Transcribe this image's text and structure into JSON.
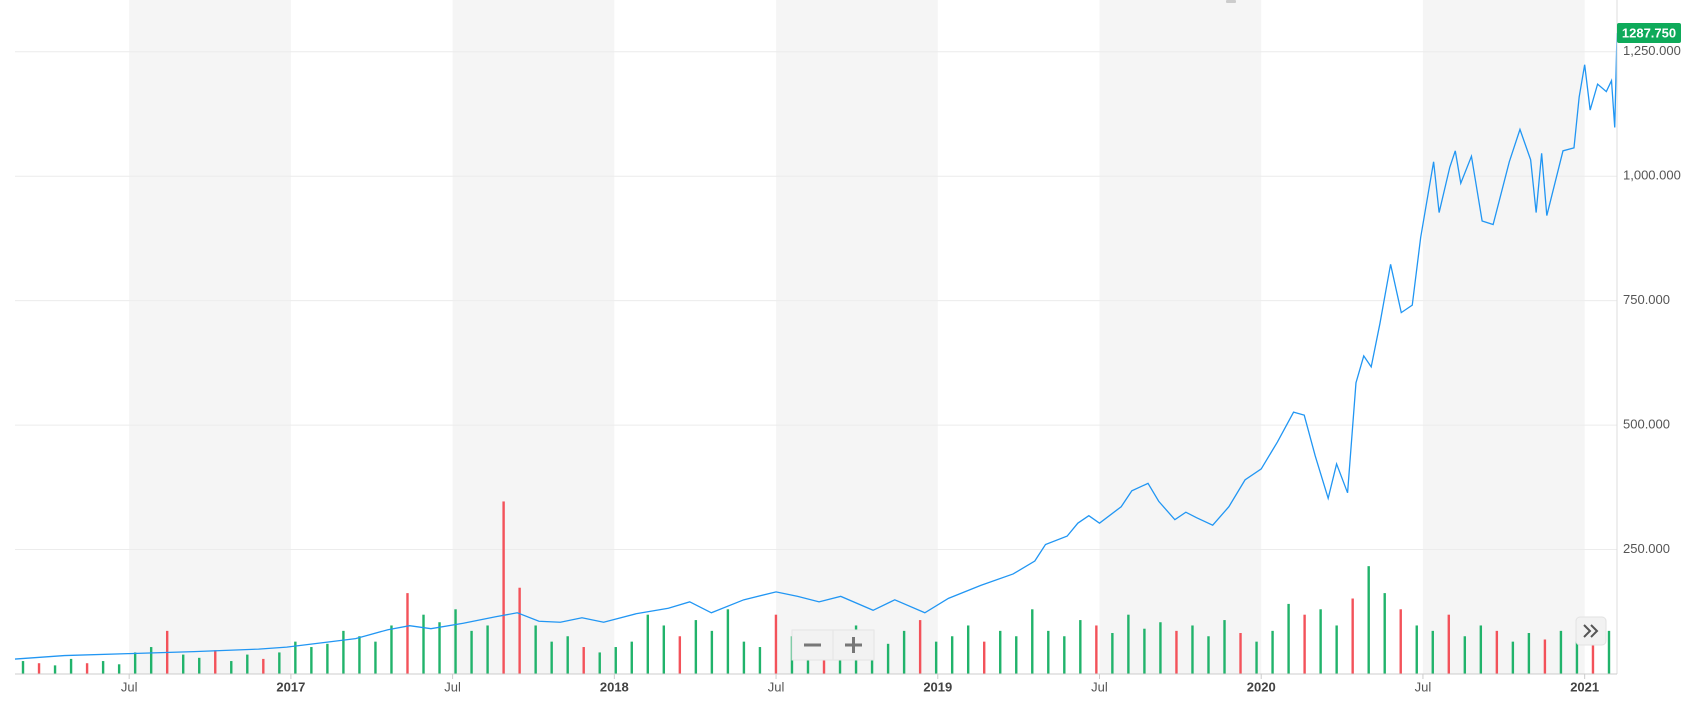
{
  "chart_data": {
    "type": "line",
    "x": [
      2016.147,
      2016.3,
      2016.5,
      2016.7,
      2016.9,
      2016.987,
      2017.1,
      2017.2,
      2017.3,
      2017.367,
      2017.433,
      2017.533,
      2017.633,
      2017.7,
      2017.767,
      2017.833,
      2017.9,
      2017.967,
      2018.067,
      2018.167,
      2018.233,
      2018.3,
      2018.4,
      2018.5,
      2018.567,
      2018.633,
      2018.7,
      2018.8,
      2018.867,
      2018.96,
      2019.033,
      2019.133,
      2019.233,
      2019.3,
      2019.333,
      2019.4,
      2019.433,
      2019.467,
      2019.5,
      2019.567,
      2019.6,
      2019.65,
      2019.683,
      2019.733,
      2019.767,
      2019.8,
      2019.85,
      2019.9,
      2019.95,
      2020.0,
      2020.05,
      2020.1,
      2020.133,
      2020.167,
      2020.207,
      2020.233,
      2020.267,
      2020.293,
      2020.317,
      2020.34,
      2020.367,
      2020.4,
      2020.433,
      2020.467,
      2020.493,
      2020.533,
      2020.55,
      2020.583,
      2020.6,
      2020.617,
      2020.65,
      2020.683,
      2020.717,
      2020.767,
      2020.8,
      2020.833,
      2020.85,
      2020.867,
      2020.883,
      2020.933,
      2020.967,
      2020.983,
      2021.0,
      2021.017,
      2021.04,
      2021.067,
      2021.083,
      2021.093,
      2021.1
    ],
    "series": [
      {
        "color": "#2196f3",
        "values": [
          30,
          37,
          41,
          45,
          50,
          54,
          63,
          71,
          89,
          97,
          91,
          102,
          115,
          123,
          106,
          104,
          113,
          104,
          121,
          132,
          145,
          123,
          149,
          165,
          156,
          145,
          156,
          128,
          149,
          123,
          152,
          178,
          201,
          227,
          260,
          277,
          303,
          318,
          303,
          336,
          368,
          383,
          347,
          310,
          325,
          314,
          299,
          336,
          390,
          412,
          466,
          526,
          520,
          438,
          353,
          422,
          364,
          585,
          639,
          617,
          704,
          823,
          726,
          741,
          877,
          1029,
          927,
          1018,
          1051,
          986,
          1040,
          910,
          903,
          1029,
          1094,
          1033,
          927,
          1046,
          921,
          1051,
          1057,
          1159,
          1224,
          1133,
          1185,
          1170,
          1192,
          1098,
          1287.75
        ]
      }
    ],
    "annotations": [
      {
        "value": 1287.75,
        "label": "1287.750",
        "color": "#0eaa5a"
      }
    ],
    "volume": {
      "axis": "y2",
      "values": [
        12,
        10,
        8,
        14,
        10,
        12,
        9,
        20,
        25,
        40,
        18,
        15,
        22,
        12,
        18,
        14,
        20,
        30,
        25,
        28,
        40,
        35,
        30,
        45,
        75,
        55,
        48,
        60,
        40,
        45,
        160,
        80,
        45,
        30,
        35,
        25,
        20,
        25,
        30,
        55,
        45,
        35,
        50,
        40,
        60,
        30,
        25,
        55,
        35,
        30,
        40,
        30,
        45,
        35,
        28,
        40,
        50,
        30,
        35,
        45,
        30,
        40,
        35,
        60,
        40,
        35,
        50,
        45,
        38,
        55,
        42,
        48,
        40,
        45,
        35,
        50,
        38,
        30,
        40,
        65,
        55,
        60,
        45,
        70,
        100,
        75,
        60,
        45,
        40,
        55,
        35,
        45,
        40,
        30,
        38,
        32,
        40,
        35,
        30,
        40
      ],
      "colors": [
        "#21b36b",
        "#f3525a",
        "#21b36b",
        "#21b36b",
        "#f3525a",
        "#21b36b",
        "#21b36b",
        "#21b36b",
        "#21b36b",
        "#f3525a",
        "#21b36b",
        "#21b36b",
        "#f3525a",
        "#21b36b",
        "#21b36b",
        "#f3525a",
        "#21b36b",
        "#21b36b",
        "#21b36b",
        "#21b36b",
        "#21b36b",
        "#21b36b",
        "#21b36b",
        "#21b36b",
        "#f3525a",
        "#21b36b",
        "#21b36b",
        "#21b36b",
        "#21b36b",
        "#21b36b",
        "#f3525a",
        "#f3525a",
        "#21b36b",
        "#21b36b",
        "#21b36b",
        "#f3525a",
        "#21b36b",
        "#21b36b",
        "#21b36b",
        "#21b36b",
        "#21b36b",
        "#f3525a",
        "#21b36b",
        "#21b36b",
        "#21b36b",
        "#21b36b",
        "#21b36b",
        "#f3525a",
        "#21b36b",
        "#21b36b",
        "#f3525a",
        "#21b36b",
        "#21b36b",
        "#21b36b",
        "#21b36b",
        "#21b36b",
        "#f3525a",
        "#21b36b",
        "#21b36b",
        "#21b36b",
        "#f3525a",
        "#21b36b",
        "#21b36b",
        "#21b36b",
        "#21b36b",
        "#21b36b",
        "#21b36b",
        "#f3525a",
        "#21b36b",
        "#21b36b",
        "#21b36b",
        "#21b36b",
        "#f3525a",
        "#21b36b",
        "#21b36b",
        "#21b36b",
        "#f3525a",
        "#21b36b",
        "#21b36b",
        "#21b36b",
        "#f3525a",
        "#21b36b",
        "#21b36b",
        "#f3525a",
        "#21b36b",
        "#21b36b",
        "#f3525a",
        "#21b36b",
        "#21b36b",
        "#f3525a",
        "#21b36b",
        "#21b36b",
        "#f3525a",
        "#21b36b",
        "#21b36b",
        "#f3525a",
        "#21b36b",
        "#21b36b",
        "#f3525a",
        "#21b36b"
      ]
    },
    "xlim": [
      2016.147,
      2021.1
    ],
    "xticks": [
      {
        "value": 2016.5,
        "label": "Jul"
      },
      2017,
      {
        "value": 2017.5,
        "label": "Jul"
      },
      2018,
      {
        "value": 2018.5,
        "label": "Jul"
      },
      2019,
      {
        "value": 2019.5,
        "label": "Jul"
      },
      2020,
      {
        "value": 2020.5,
        "label": "Jul"
      },
      2021
    ],
    "ylim": [
      0,
      1354
    ],
    "yticks": [
      {
        "value": 250,
        "label": "250.000"
      },
      {
        "value": 500,
        "label": "500.000"
      },
      {
        "value": 750,
        "label": "750.000"
      },
      {
        "value": 1000,
        "label": "1,000.000"
      },
      {
        "value": 1250,
        "label": "1,250.000"
      }
    ],
    "y2lim": [
      0,
      625
    ],
    "grid": true
  }
}
